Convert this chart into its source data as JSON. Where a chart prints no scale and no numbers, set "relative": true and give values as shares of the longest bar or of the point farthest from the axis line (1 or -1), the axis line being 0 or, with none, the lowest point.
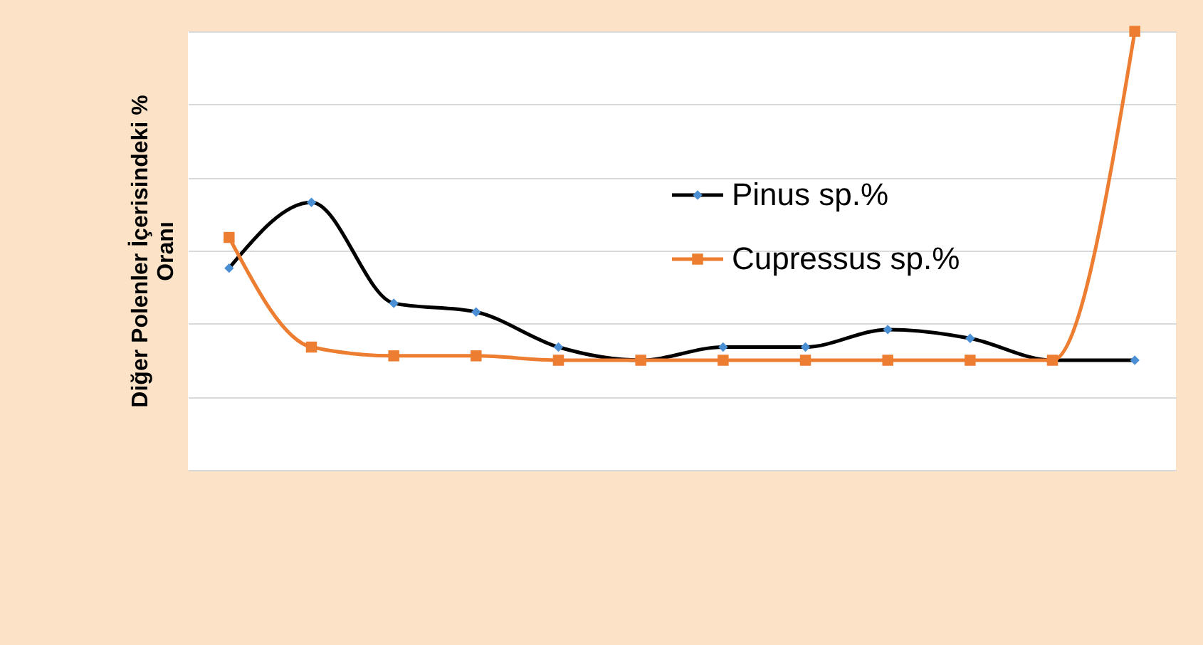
{
  "chart_data": {
    "type": "line",
    "ylabel": "Diğer Polenler İçerisindeki % Oranı",
    "relative": true,
    "categories": [
      null,
      null,
      null,
      null,
      null,
      null,
      null,
      null,
      null,
      null,
      null,
      null
    ],
    "series": [
      {
        "name": "Pinus sp.%",
        "color": "#000000",
        "marker": "diamond",
        "values": [
          0.46,
          0.61,
          0.38,
          0.36,
          0.28,
          0.25,
          0.28,
          0.28,
          0.32,
          0.3,
          0.25,
          0.25
        ]
      },
      {
        "name": "Cupressus sp.%",
        "color": "#ed7d31",
        "marker": "square",
        "values": [
          0.53,
          0.28,
          0.26,
          0.26,
          0.25,
          0.25,
          0.25,
          0.25,
          0.25,
          0.25,
          0.25,
          1.0
        ]
      }
    ],
    "grid": "y",
    "legend": "right"
  }
}
